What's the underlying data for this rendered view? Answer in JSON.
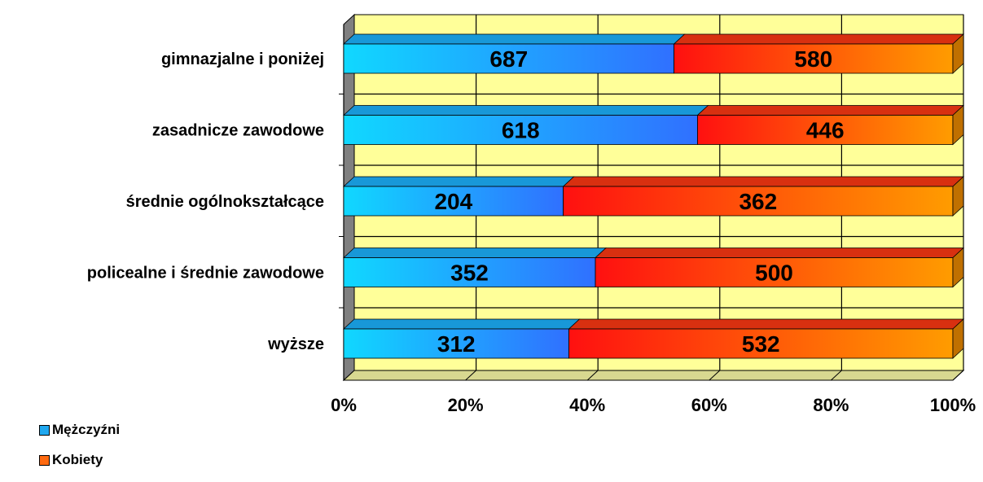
{
  "chart_data": {
    "type": "bar",
    "orientation": "horizontal",
    "stacking": "percent",
    "categories": [
      "gimnazjalne i poniżej",
      "zasadnicze zawodowe",
      "średnie ogólnokształcące",
      "policealne i średnie zawodowe",
      "wyższe"
    ],
    "series": [
      {
        "name": "Mężczyźni",
        "values": [
          687,
          618,
          204,
          352,
          312
        ],
        "color": "#1fb4ff"
      },
      {
        "name": "Kobiety",
        "values": [
          580,
          446,
          362,
          500,
          532
        ],
        "color": "#ff4a10"
      }
    ],
    "x_ticks": [
      "0%",
      "20%",
      "40%",
      "60%",
      "80%",
      "100%"
    ],
    "xlim": [
      0,
      100
    ],
    "grid": true,
    "legend_position": "bottom-left",
    "colors": {
      "plot_background": "#ffff99",
      "floor": "#d8d890",
      "left_wall": "#808080"
    }
  }
}
